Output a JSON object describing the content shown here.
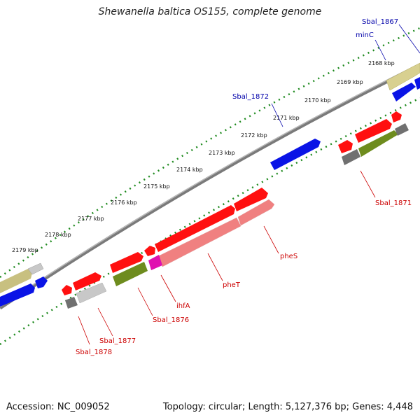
{
  "title": "Shewanella baltica OS155, complete genome",
  "accession": "Accession: NC_009052",
  "summary": "Topology: circular; Length: 5,127,376 bp; Genes: 4,448",
  "colors": {
    "backbone": "#7a7a7a",
    "tick": "#1e8a1e",
    "cds_red": "#ff1010",
    "cds_blue": "#0a14e6",
    "cds_pink": "#f08080",
    "cds_magenta": "#e010b0",
    "cds_olive": "#6e8c1e",
    "cds_khaki": "#c8c080",
    "cds_grey": "#707070",
    "cds_lightgrey": "#c8c8c8",
    "label_red": "#cc0000",
    "label_blue": "#0000aa"
  },
  "tick_labels": [
    "2168 kbp",
    "2169 kbp",
    "2170 kbp",
    "2171 kbp",
    "2172 kbp",
    "2173 kbp",
    "2174 kbp",
    "2175 kbp",
    "2176 kbp",
    "2177 kbp",
    "2178 kbp",
    "2179 kbp"
  ],
  "gene_labels": {
    "sbal_1867": "Sbal_1867",
    "minC": "minC",
    "sbal_1872": "Sbal_1872",
    "sbal_1871": "Sbal_1871",
    "pheS": "pheS",
    "pheT": "pheT",
    "ihfA": "ihfA",
    "sbal_1876": "Sbal_1876",
    "sbal_1877": "Sbal_1877",
    "sbal_1878": "Sbal_1878"
  }
}
